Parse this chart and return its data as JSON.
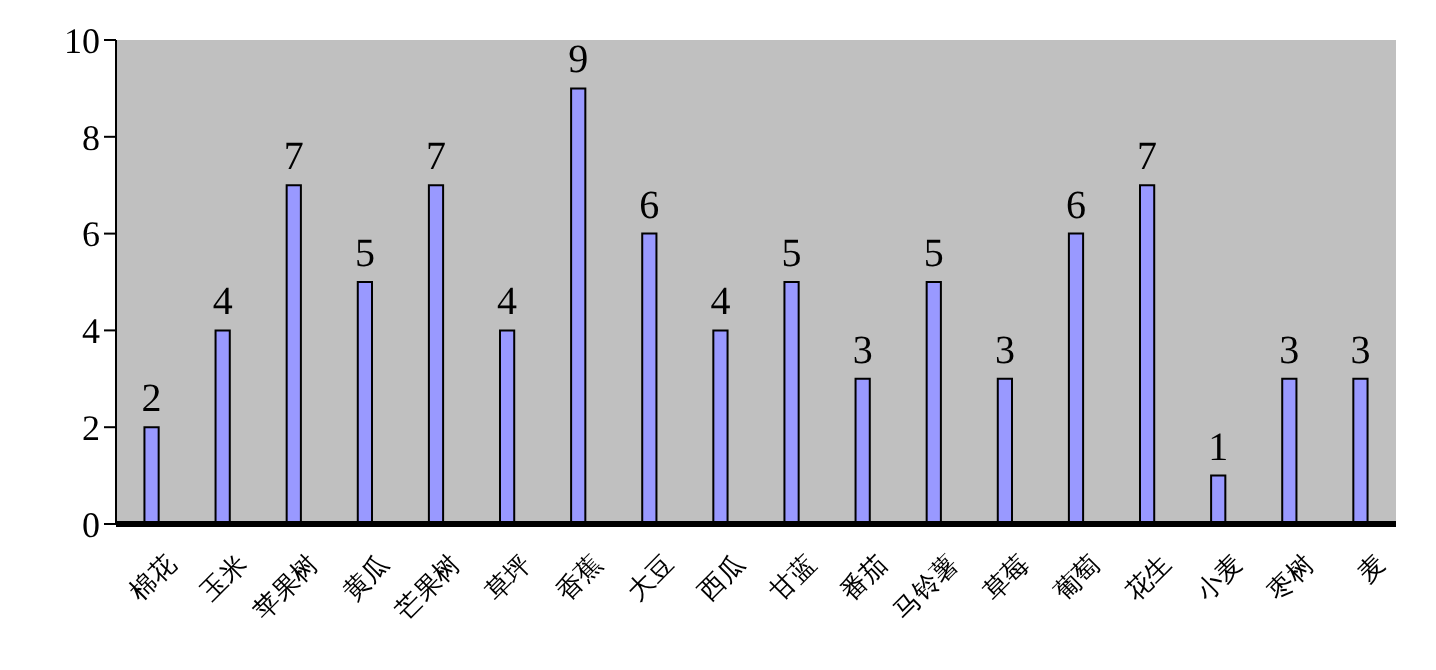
{
  "chart_data": {
    "type": "bar",
    "categories": [
      "棉花",
      "玉米",
      "苹果树",
      "黄瓜",
      "芒果树",
      "草坪",
      "香蕉",
      "大豆",
      "西瓜",
      "甘蓝",
      "番茄",
      "马铃薯",
      "草莓",
      "葡萄",
      "花生",
      "小麦",
      "枣树",
      "麦"
    ],
    "values": [
      2,
      4,
      7,
      5,
      7,
      4,
      9,
      6,
      4,
      5,
      3,
      5,
      3,
      6,
      7,
      1,
      3,
      3
    ],
    "color": "#9999ff",
    "ylim": [
      0,
      10
    ],
    "yticks": [
      0,
      2,
      4,
      6,
      8,
      10
    ],
    "data_labels": true,
    "grid": false
  }
}
